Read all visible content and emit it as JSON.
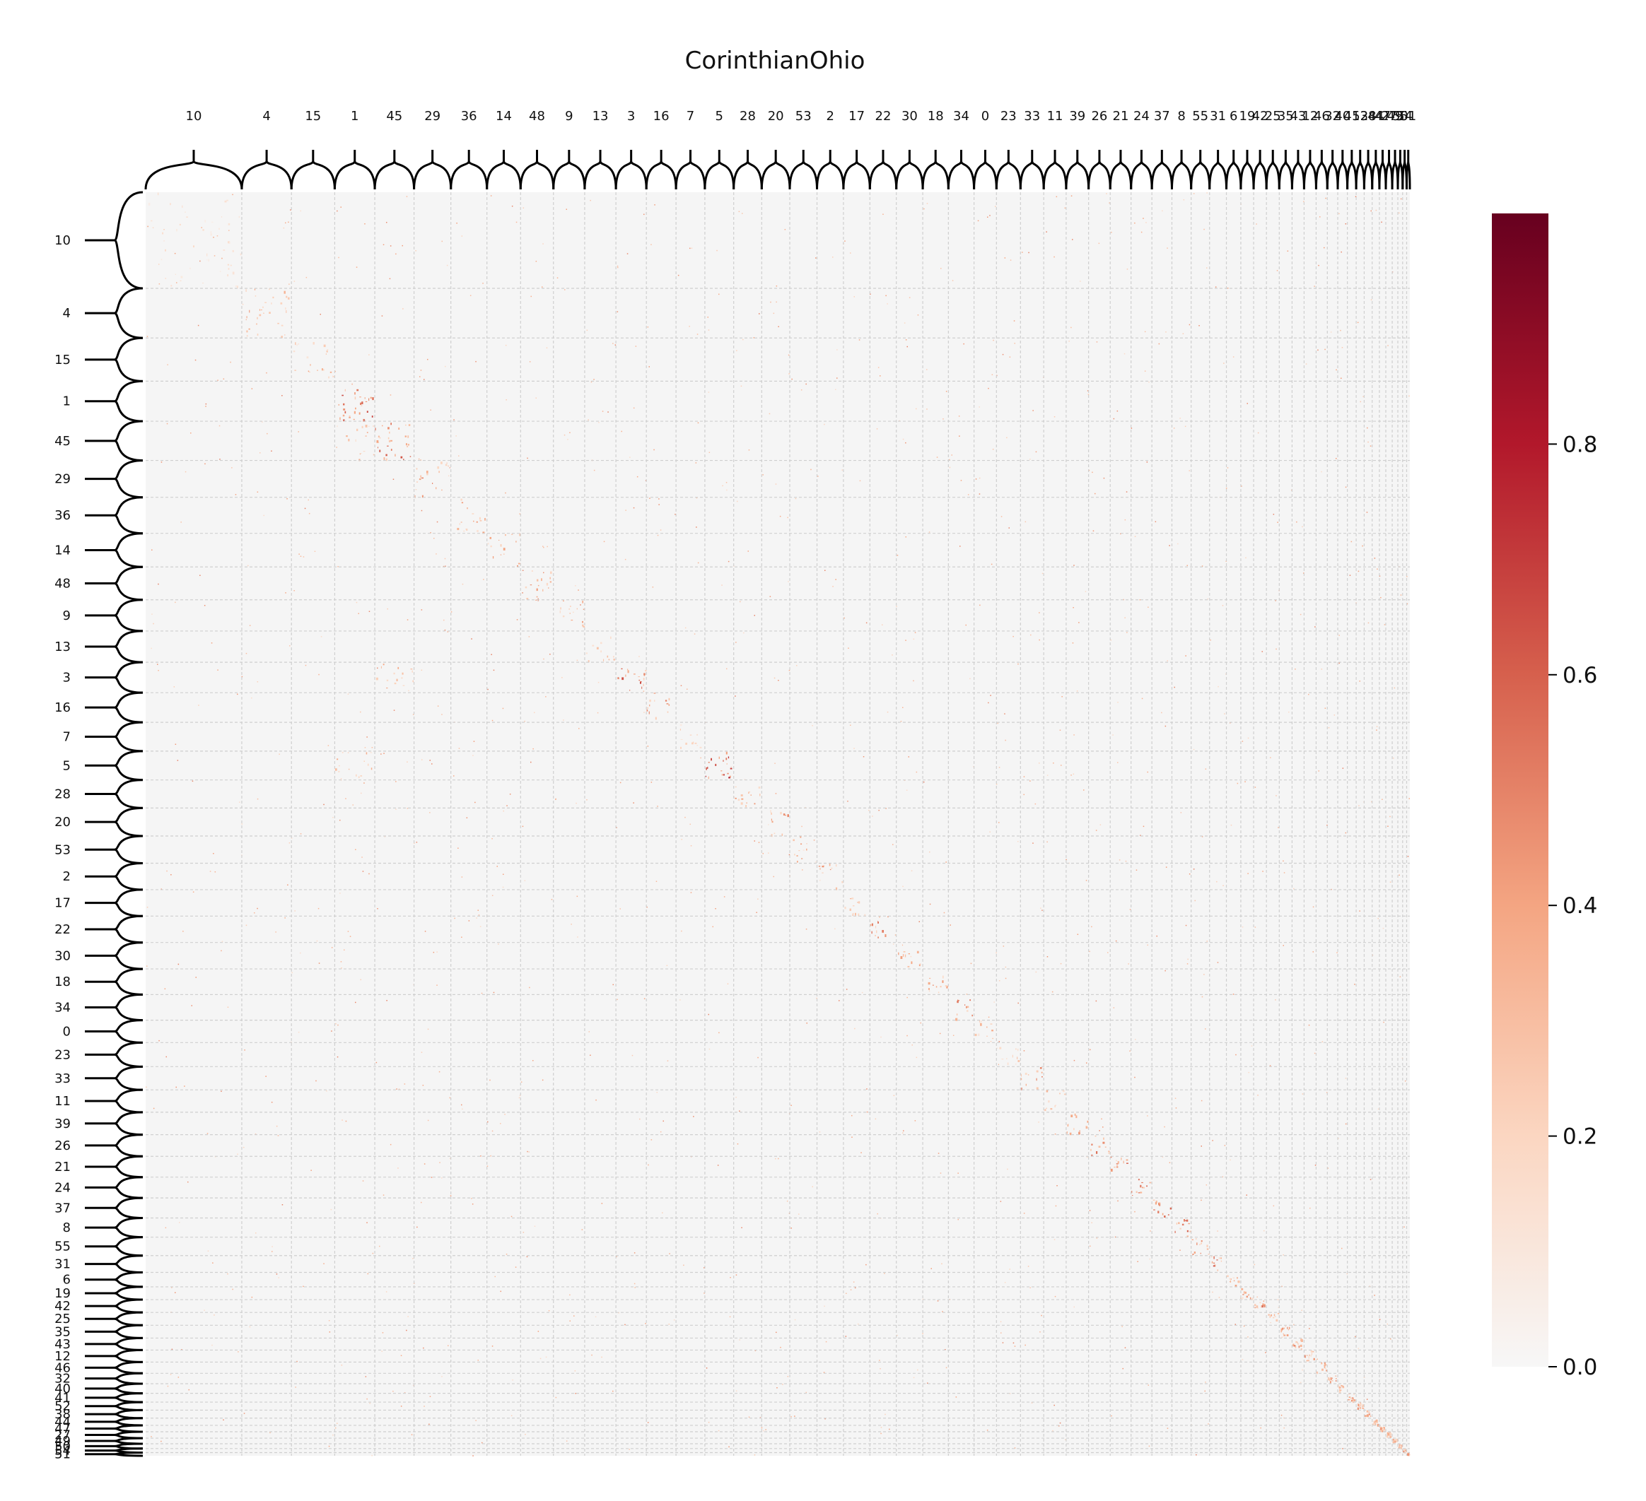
{
  "chart_data": {
    "type": "heatmap",
    "title": "CorinthianOhio",
    "clusters": [
      {
        "label": "10",
        "size": 120
      },
      {
        "label": "4",
        "size": 62
      },
      {
        "label": "15",
        "size": 54
      },
      {
        "label": "1",
        "size": 50
      },
      {
        "label": "45",
        "size": 49
      },
      {
        "label": "29",
        "size": 46
      },
      {
        "label": "36",
        "size": 45
      },
      {
        "label": "14",
        "size": 42
      },
      {
        "label": "48",
        "size": 41
      },
      {
        "label": "9",
        "size": 39
      },
      {
        "label": "13",
        "size": 39
      },
      {
        "label": "3",
        "size": 38
      },
      {
        "label": "16",
        "size": 37
      },
      {
        "label": "7",
        "size": 36
      },
      {
        "label": "5",
        "size": 36
      },
      {
        "label": "28",
        "size": 35
      },
      {
        "label": "20",
        "size": 35
      },
      {
        "label": "53",
        "size": 34
      },
      {
        "label": "2",
        "size": 33
      },
      {
        "label": "17",
        "size": 33
      },
      {
        "label": "22",
        "size": 33
      },
      {
        "label": "30",
        "size": 33
      },
      {
        "label": "18",
        "size": 32
      },
      {
        "label": "34",
        "size": 32
      },
      {
        "label": "0",
        "size": 28
      },
      {
        "label": "23",
        "size": 30
      },
      {
        "label": "33",
        "size": 29
      },
      {
        "label": "11",
        "size": 28
      },
      {
        "label": "39",
        "size": 28
      },
      {
        "label": "26",
        "size": 27
      },
      {
        "label": "21",
        "size": 26
      },
      {
        "label": "24",
        "size": 26
      },
      {
        "label": "37",
        "size": 25
      },
      {
        "label": "8",
        "size": 24
      },
      {
        "label": "55",
        "size": 23
      },
      {
        "label": "31",
        "size": 21
      },
      {
        "label": "6",
        "size": 18
      },
      {
        "label": "19",
        "size": 16
      },
      {
        "label": "42",
        "size": 16
      },
      {
        "label": "25",
        "size": 16
      },
      {
        "label": "35",
        "size": 16
      },
      {
        "label": "43",
        "size": 15
      },
      {
        "label": "12",
        "size": 15
      },
      {
        "label": "46",
        "size": 14
      },
      {
        "label": "32",
        "size": 13
      },
      {
        "label": "40",
        "size": 12
      },
      {
        "label": "41",
        "size": 11
      },
      {
        "label": "52",
        "size": 10
      },
      {
        "label": "38",
        "size": 10
      },
      {
        "label": "44",
        "size": 9
      },
      {
        "label": "47",
        "size": 8
      },
      {
        "label": "27",
        "size": 8
      },
      {
        "label": "49",
        "size": 7
      },
      {
        "label": "50",
        "size": 6
      },
      {
        "label": "54",
        "size": 5
      },
      {
        "label": "51",
        "size": 4
      }
    ],
    "top_tick_text": "10, 4, 15, 1, 45, 29, 36, 14, 48, 9, 13, 3, 16, 7, 5, 28, 20, 53, 2, 17, 22, 30, 18, 34, 0, 23, 33, 11, 39, 26, 21, 24, 37, 8, 55, 31, 6, 19, 42, 25, 35, 43, 12, 46, 32, 40, 41, 52, 38, 44, 47, 27, 49, 50, 54, 51",
    "value_range": [
      0.0,
      1.0
    ],
    "colormap": "RdBu_r (upper half)",
    "colorbar": {
      "ticks": [
        0.0,
        0.2,
        0.4,
        0.6,
        0.8
      ],
      "tick_labels": [
        "0.0",
        "0.2",
        "0.4",
        "0.6",
        "0.8"
      ]
    },
    "background_value_color": "#f5f5f5",
    "grid": "dashed cluster boundaries",
    "highlighted_blocks": [
      {
        "row": "10",
        "col": "10",
        "value": 0.15
      },
      {
        "row": "4",
        "col": "4",
        "value": 0.35
      },
      {
        "row": "15",
        "col": "15",
        "value": 0.3
      },
      {
        "row": "1",
        "col": "1",
        "value": 0.55
      },
      {
        "row": "45",
        "col": "45",
        "value": 0.5
      },
      {
        "row": "45",
        "col": "1",
        "value": 0.3
      },
      {
        "row": "29",
        "col": "29",
        "value": 0.4
      },
      {
        "row": "36",
        "col": "36",
        "value": 0.35
      },
      {
        "row": "14",
        "col": "14",
        "value": 0.35
      },
      {
        "row": "48",
        "col": "48",
        "value": 0.45
      },
      {
        "row": "9",
        "col": "9",
        "value": 0.35
      },
      {
        "row": "13",
        "col": "13",
        "value": 0.35
      },
      {
        "row": "3",
        "col": "3",
        "value": 0.55
      },
      {
        "row": "3",
        "col": "45",
        "value": 0.35
      },
      {
        "row": "16",
        "col": "16",
        "value": 0.4
      },
      {
        "row": "7",
        "col": "7",
        "value": 0.2
      },
      {
        "row": "5",
        "col": "5",
        "value": 0.7
      },
      {
        "row": "5",
        "col": "1",
        "value": 0.3
      },
      {
        "row": "28",
        "col": "28",
        "value": 0.35
      },
      {
        "row": "20",
        "col": "20",
        "value": 0.4
      },
      {
        "row": "53",
        "col": "53",
        "value": 0.35
      },
      {
        "row": "2",
        "col": "2",
        "value": 0.4
      },
      {
        "row": "17",
        "col": "17",
        "value": 0.3
      },
      {
        "row": "22",
        "col": "22",
        "value": 0.5
      },
      {
        "row": "30",
        "col": "30",
        "value": 0.35
      },
      {
        "row": "18",
        "col": "18",
        "value": 0.4
      },
      {
        "row": "34",
        "col": "34",
        "value": 0.45
      },
      {
        "row": "0",
        "col": "0",
        "value": 0.3
      },
      {
        "row": "23",
        "col": "23",
        "value": 0.3
      },
      {
        "row": "33",
        "col": "33",
        "value": 0.45
      },
      {
        "row": "11",
        "col": "11",
        "value": 0.3
      },
      {
        "row": "39",
        "col": "39",
        "value": 0.35
      },
      {
        "row": "26",
        "col": "26",
        "value": 0.45
      },
      {
        "row": "21",
        "col": "21",
        "value": 0.55
      },
      {
        "row": "24",
        "col": "24",
        "value": 0.45
      },
      {
        "row": "37",
        "col": "37",
        "value": 0.5
      },
      {
        "row": "8",
        "col": "8",
        "value": 0.55
      },
      {
        "row": "55",
        "col": "55",
        "value": 0.45
      },
      {
        "row": "31",
        "col": "31",
        "value": 0.55
      },
      {
        "row": "6",
        "col": "6",
        "value": 0.4
      },
      {
        "row": "19",
        "col": "19",
        "value": 0.4
      },
      {
        "row": "42",
        "col": "42",
        "value": 0.45
      },
      {
        "row": "25",
        "col": "25",
        "value": 0.4
      },
      {
        "row": "35",
        "col": "35",
        "value": 0.4
      },
      {
        "row": "43",
        "col": "43",
        "value": 0.4
      },
      {
        "row": "12",
        "col": "12",
        "value": 0.4
      },
      {
        "row": "46",
        "col": "46",
        "value": 0.4
      },
      {
        "row": "32",
        "col": "32",
        "value": 0.4
      },
      {
        "row": "40",
        "col": "40",
        "value": 0.4
      },
      {
        "row": "41",
        "col": "41",
        "value": 0.4
      },
      {
        "row": "52",
        "col": "52",
        "value": 0.4
      },
      {
        "row": "38",
        "col": "38",
        "value": 0.4
      },
      {
        "row": "44",
        "col": "44",
        "value": 0.4
      },
      {
        "row": "47",
        "col": "47",
        "value": 0.4
      },
      {
        "row": "27",
        "col": "27",
        "value": 0.4
      },
      {
        "row": "49",
        "col": "49",
        "value": 0.4
      },
      {
        "row": "50",
        "col": "50",
        "value": 0.4
      },
      {
        "row": "54",
        "col": "54",
        "value": 0.4
      },
      {
        "row": "51",
        "col": "51",
        "value": 0.4
      }
    ]
  }
}
